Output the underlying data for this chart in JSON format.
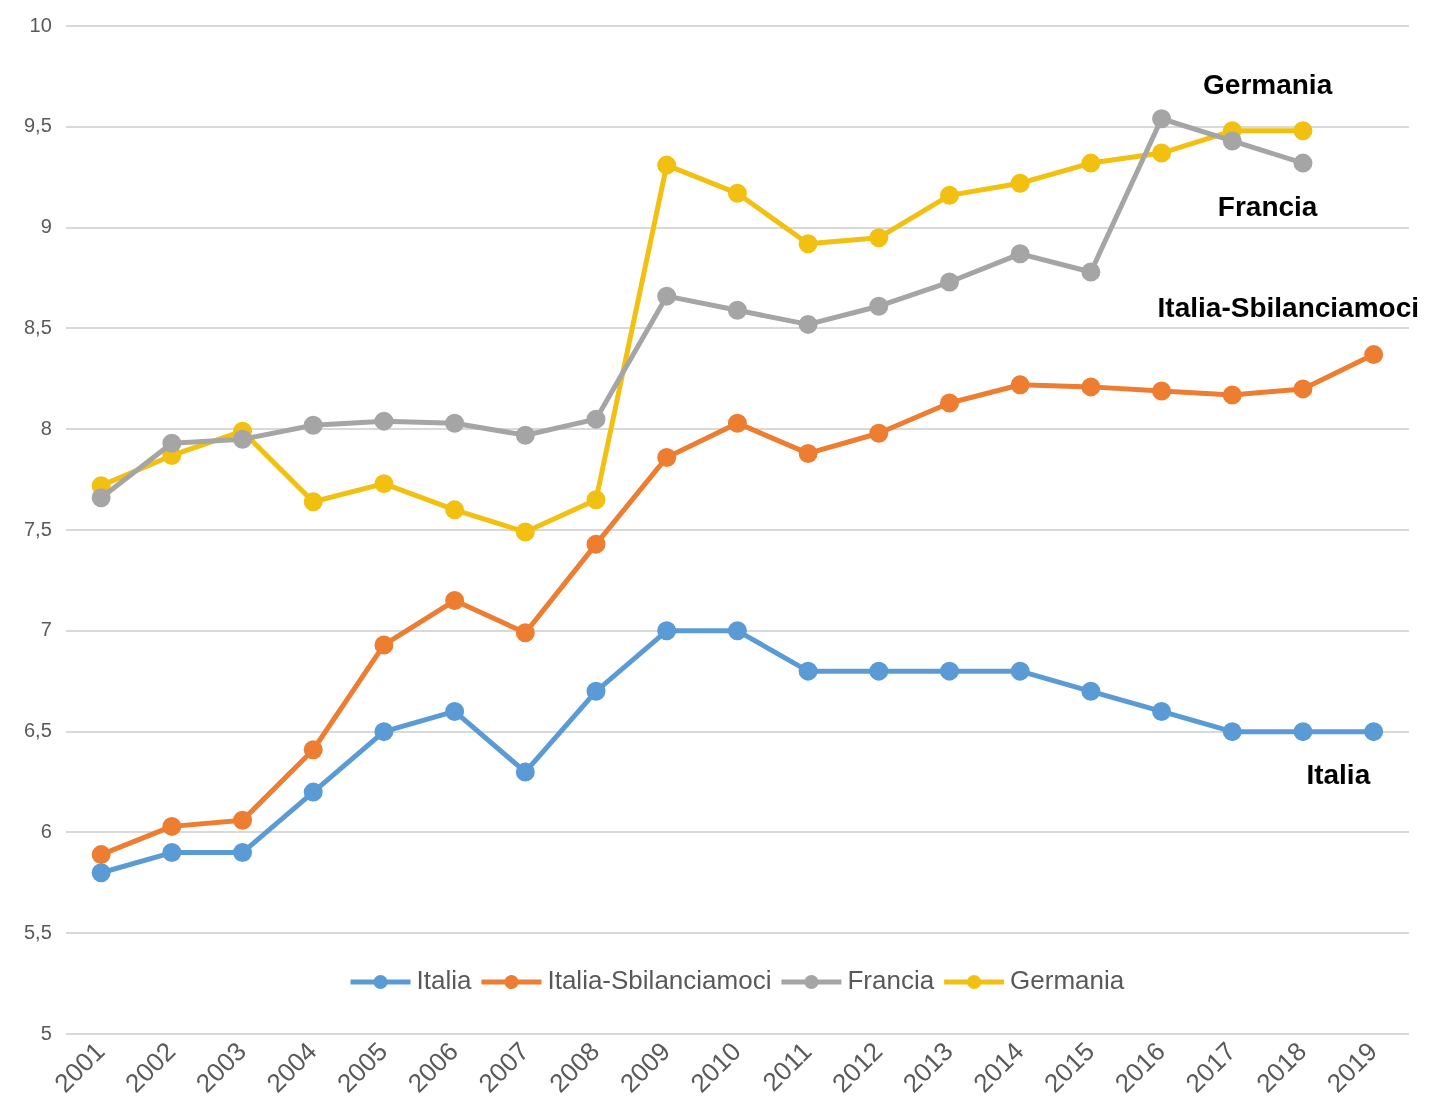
{
  "chart_data": {
    "type": "line",
    "categories": [
      "2001",
      "2002",
      "2003",
      "2004",
      "2005",
      "2006",
      "2007",
      "2008",
      "2009",
      "2010",
      "2011",
      "2012",
      "2013",
      "2014",
      "2015",
      "2016",
      "2017",
      "2018",
      "2019"
    ],
    "series": [
      {
        "name": "Italia",
        "color": "#5b9bd5",
        "values": [
          5.8,
          5.9,
          5.9,
          6.2,
          6.5,
          6.6,
          6.3,
          6.7,
          7.0,
          7.0,
          6.8,
          6.8,
          6.8,
          6.8,
          6.7,
          6.6,
          6.5,
          6.5,
          6.5
        ]
      },
      {
        "name": "Italia-Sbilanciamoci",
        "color": "#ed7d31",
        "values": [
          5.89,
          6.03,
          6.06,
          6.41,
          6.93,
          7.15,
          6.99,
          7.43,
          7.86,
          8.03,
          7.88,
          7.98,
          8.13,
          8.22,
          8.21,
          8.19,
          8.17,
          8.2,
          8.37
        ]
      },
      {
        "name": "Francia",
        "color": "#a5a5a5",
        "values": [
          7.66,
          7.93,
          7.95,
          8.02,
          8.04,
          8.03,
          7.97,
          8.05,
          8.66,
          8.59,
          8.52,
          8.61,
          8.73,
          8.87,
          8.78,
          9.54,
          9.43,
          9.32,
          null
        ]
      },
      {
        "name": "Germania",
        "color": "#f2c010",
        "values": [
          7.72,
          7.87,
          7.99,
          7.64,
          7.73,
          7.6,
          7.49,
          7.65,
          9.31,
          9.17,
          8.92,
          8.95,
          9.16,
          9.22,
          9.32,
          9.37,
          9.48,
          9.48,
          null
        ]
      }
    ],
    "ylim": [
      5,
      10
    ],
    "yticks": [
      5,
      {
        "value": 5.5,
        "label": "5,5"
      },
      6,
      {
        "value": 6.5,
        "label": "6,5"
      },
      7,
      {
        "value": 7.5,
        "label": "7,5"
      },
      8,
      {
        "value": 8.5,
        "label": "8,5"
      },
      9,
      {
        "value": 9.5,
        "label": "9,5"
      },
      10
    ],
    "grid": "y",
    "legend": "bottom",
    "marker": "circle",
    "line_style": "solid"
  }
}
